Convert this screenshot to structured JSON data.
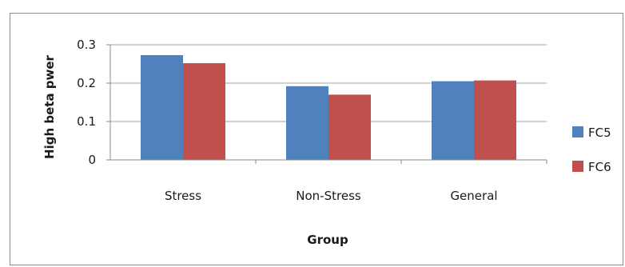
{
  "chart_data": {
    "type": "bar",
    "title": "",
    "xlabel": "Group",
    "ylabel": "High beta pwer",
    "categories": [
      "Stress",
      "Non-Stress",
      "General"
    ],
    "series": [
      {
        "name": "FC5",
        "values": [
          0.273,
          0.192,
          0.205
        ],
        "color": "#4f81bd"
      },
      {
        "name": "FC6",
        "values": [
          0.252,
          0.17,
          0.207
        ],
        "color": "#c0504d"
      }
    ],
    "ylim": [
      0,
      0.3
    ],
    "yticks": [
      "0",
      "0.1",
      "0.2",
      "0.3"
    ],
    "ytick_values": [
      0,
      0.1,
      0.2,
      0.3
    ],
    "grid": true,
    "legend_position": "right"
  }
}
